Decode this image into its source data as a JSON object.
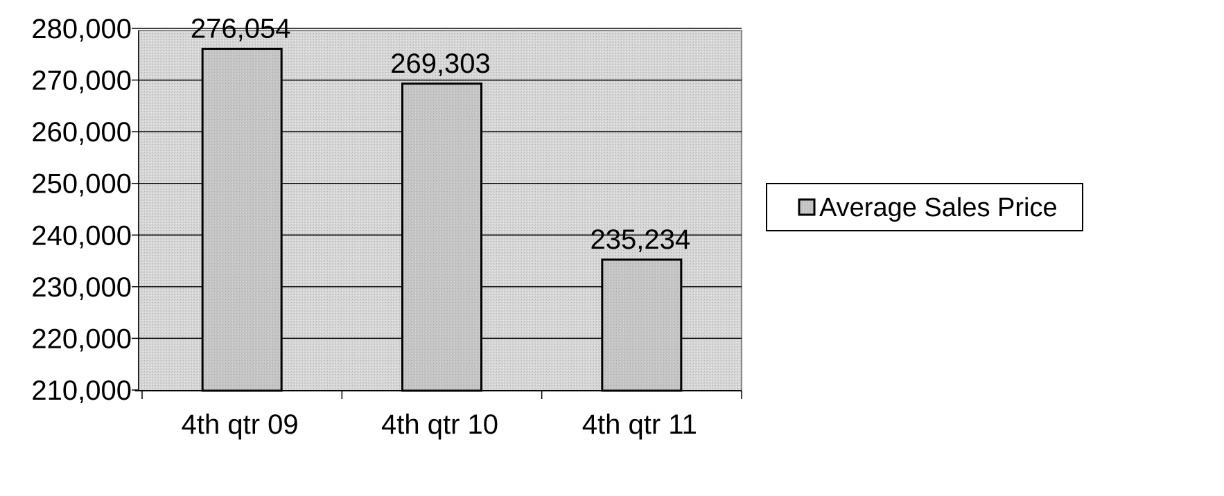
{
  "chart_data": {
    "type": "bar",
    "categories": [
      "4th qtr 09",
      "4th qtr 10",
      "4th qtr 11"
    ],
    "series": [
      {
        "name": "Average Sales Price",
        "values": [
          276054,
          269303,
          235234
        ]
      }
    ],
    "data_labels": [
      "276,054",
      "269,303",
      "235,234"
    ],
    "y_tick_labels": [
      "210,000",
      "220,000",
      "230,000",
      "240,000",
      "250,000",
      "260,000",
      "270,000",
      "280,000"
    ],
    "y_ticks": [
      210000,
      220000,
      230000,
      240000,
      250000,
      260000,
      270000,
      280000
    ],
    "ylim": [
      210000,
      280000
    ],
    "grid": true,
    "legend": "right",
    "colors": {
      "plot_background": "#d9d9d9",
      "bar_fill": "#c8c8c8",
      "bar_stroke": "#000000",
      "gridline": "#000000"
    }
  }
}
